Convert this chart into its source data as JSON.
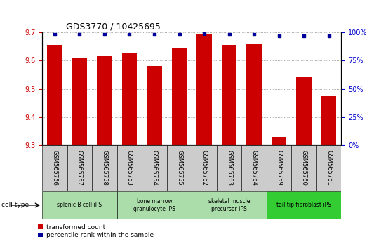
{
  "title": "GDS3770 / 10425695",
  "samples": [
    "GSM565756",
    "GSM565757",
    "GSM565758",
    "GSM565753",
    "GSM565754",
    "GSM565755",
    "GSM565762",
    "GSM565763",
    "GSM565764",
    "GSM565759",
    "GSM565760",
    "GSM565761"
  ],
  "transformed_count": [
    9.655,
    9.608,
    9.615,
    9.625,
    9.58,
    9.645,
    9.695,
    9.655,
    9.658,
    9.33,
    9.54,
    9.475
  ],
  "percentile_values": [
    98,
    98,
    98,
    98,
    98,
    98,
    99,
    98,
    98,
    97,
    97,
    97
  ],
  "cell_types": [
    {
      "label": "splenic B cell iPS",
      "start": 0,
      "end": 3,
      "color": "#aaddaa"
    },
    {
      "label": "bone marrow\ngranulocyte iPS",
      "start": 3,
      "end": 6,
      "color": "#aaddaa"
    },
    {
      "label": "skeletal muscle\nprecursor iPS",
      "start": 6,
      "end": 9,
      "color": "#aaddaa"
    },
    {
      "label": "tail tip fibroblast iPS",
      "start": 9,
      "end": 12,
      "color": "#33cc33"
    }
  ],
  "ylim_left": [
    9.3,
    9.7
  ],
  "ylim_right": [
    0,
    100
  ],
  "yticks_left": [
    9.3,
    9.4,
    9.5,
    9.6,
    9.7
  ],
  "yticks_right": [
    0,
    25,
    50,
    75,
    100
  ],
  "bar_color": "#cc0000",
  "dot_color": "#000099",
  "bar_width": 0.6,
  "background_color": "#ffffff",
  "ylabel_left_color": "#cc0000",
  "ylabel_right_color": "#0000cc",
  "sample_box_color": "#cccccc",
  "title_fontsize": 9,
  "tick_fontsize": 7,
  "label_fontsize": 6
}
